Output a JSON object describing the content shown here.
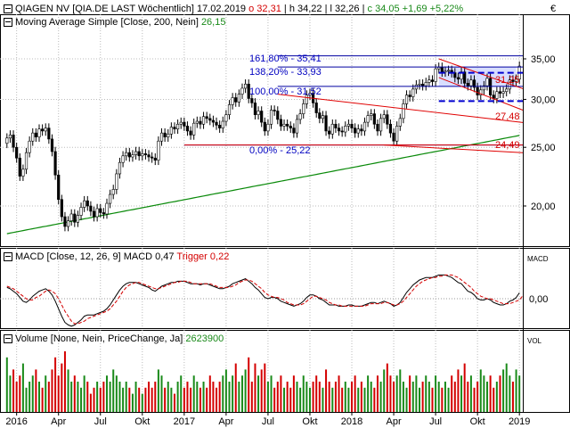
{
  "header": {
    "name": "QIAGEN NV",
    "instrument": "[QIA.DE LAST Wöchentlich]",
    "date": "17.02.2019",
    "o": "o 32,31",
    "h": "h 34,22",
    "l": "l 32,26",
    "c": "c 34,05",
    "change": "+1,69",
    "change_pct": "+5,22%",
    "corner_label": "€"
  },
  "sma_legend": {
    "label": "Moving Average Simple",
    "params": "[Close, 200, Nein]",
    "value": "26,15"
  },
  "macd_legend": {
    "label": "MACD",
    "params": "[Close, 12, 26, 9]",
    "value_label": "MACD 0,47",
    "trigger_label": "Trigger 0,22",
    "axis_label": "MACD"
  },
  "volume_legend": {
    "label": "Volume",
    "params": "[None, Nein, PriceChange, Ja]",
    "value": "2623900",
    "axis_label": "VOL"
  },
  "fib_labels": [
    "161,80% - 35,41",
    "138,20% - 33,93",
    "100,00% - 31,52",
    "0,00% - 25,22"
  ],
  "level_labels": [
    "31,25",
    "27,48",
    "24,49"
  ],
  "chart_data": [
    {
      "type": "candlestick",
      "title": "QIAGEN NV",
      "y_ticks": [
        "35,00",
        "30,00",
        "25,00",
        "20,00"
      ],
      "y_tick_values": [
        35,
        30,
        25,
        20
      ],
      "ylim": [
        16.8,
        36.4
      ],
      "y_scale": "log",
      "x_ticks": [
        "2016",
        "Apr",
        "Jul",
        "Okt",
        "2017",
        "Apr",
        "Jul",
        "Okt",
        "2018",
        "Apr",
        "Jul",
        "Okt",
        "2019"
      ],
      "x_tick_weeks": [
        3,
        16,
        29,
        42,
        55,
        68,
        81,
        94,
        107,
        120,
        133,
        146,
        159
      ],
      "closes": [
        25.9,
        26.2,
        25.0,
        24.0,
        22.4,
        23.0,
        24.5,
        25.6,
        26.4,
        26.0,
        26.8,
        26.6,
        26.9,
        25.8,
        24.6,
        22.5,
        20.5,
        19.2,
        18.5,
        18.9,
        19.4,
        18.8,
        19.3,
        19.9,
        20.4,
        20.0,
        19.6,
        19.2,
        19.8,
        19.5,
        19.4,
        20.2,
        20.9,
        21.3,
        22.6,
        23.6,
        24.2,
        24.5,
        24.1,
        24.3,
        24.6,
        24.2,
        24.4,
        24.3,
        24.1,
        24.0,
        23.8,
        25.6,
        26.4,
        26.0,
        26.3,
        27.0,
        26.8,
        27.3,
        27.5,
        27.1,
        26.6,
        26.2,
        27.4,
        27.6,
        27.3,
        28.1,
        27.9,
        27.7,
        27.5,
        27.2,
        26.9,
        27.6,
        28.3,
        29.4,
        30.2,
        29.7,
        30.6,
        31.3,
        31.8,
        30.1,
        29.6,
        28.3,
        28.7,
        27.5,
        26.6,
        27.3,
        28.8,
        28.7,
        27.8,
        27.1,
        27.3,
        27.1,
        26.9,
        26.4,
        27.8,
        28.4,
        29.5,
        30.5,
        30.7,
        29.6,
        28.5,
        27.9,
        28.2,
        26.6,
        26.3,
        27.3,
        26.9,
        26.6,
        26.5,
        27.1,
        27.3,
        26.9,
        26.4,
        26.8,
        26.6,
        27.5,
        28.2,
        28.4,
        27.3,
        26.6,
        27.9,
        28.3,
        27.3,
        26.4,
        25.6,
        27.1,
        27.9,
        29.5,
        30.5,
        30.3,
        31.2,
        31.7,
        31.8,
        31.6,
        32.0,
        32.3,
        32.1,
        33.7,
        33.9,
        33.3,
        33.4,
        33.5,
        33.2,
        32.6,
        32.4,
        33.3,
        31.9,
        31.6,
        32.3,
        31.4,
        30.5,
        31.1,
        31.6,
        32.5,
        30.5,
        30.1,
        30.9,
        30.7,
        30.9,
        31.2,
        32.3,
        32.1,
        32.4,
        34.05
      ],
      "series": [
        {
          "name": "Moving Average Simple",
          "start": 18.0,
          "end": 26.15
        }
      ],
      "channel_lines": [
        {
          "from": [
            117,
            25.22
          ],
          "to": [
            180,
            24.49
          ]
        },
        {
          "from": [
            55,
            25.22
          ],
          "to": [
            180,
            25.22
          ]
        },
        {
          "from": [
            84,
            30.6
          ],
          "to": [
            180,
            27.48
          ]
        },
        {
          "from": [
            134,
            35.0
          ],
          "to": [
            180,
            31.25
          ]
        },
        {
          "from": [
            134,
            32.6
          ],
          "to": [
            180,
            28.8
          ]
        }
      ],
      "fib_levels": [
        35.41,
        33.93,
        31.52,
        25.22
      ],
      "dashed_levels": [
        33.2,
        29.8
      ]
    },
    {
      "type": "line",
      "title": "MACD",
      "y_ticks": [
        "0,00"
      ],
      "series": [
        {
          "name": "MACD",
          "values": [
            0.9,
            0.8,
            0.6,
            0.4,
            0.1,
            -0.2,
            -0.3,
            -0.1,
            0.2,
            0.4,
            0.6,
            0.7,
            0.8,
            0.6,
            0.3,
            -0.2,
            -0.8,
            -1.4,
            -1.9,
            -2.1,
            -2.2,
            -2.1,
            -1.9,
            -1.7,
            -1.4,
            -1.3,
            -1.3,
            -1.3,
            -1.2,
            -1.1,
            -1.0,
            -0.8,
            -0.5,
            -0.1,
            0.3,
            0.7,
            1.0,
            1.2,
            1.3,
            1.3,
            1.3,
            1.2,
            1.1,
            1.0,
            0.9,
            0.7,
            0.6,
            0.8,
            1.0,
            1.1,
            1.2,
            1.3,
            1.3,
            1.4,
            1.4,
            1.4,
            1.3,
            1.2,
            1.2,
            1.2,
            1.1,
            1.2,
            1.2,
            1.1,
            1.0,
            0.9,
            0.8,
            0.8,
            0.9,
            1.0,
            1.2,
            1.3,
            1.4,
            1.5,
            1.6,
            1.4,
            1.2,
            0.9,
            0.7,
            0.4,
            0.1,
            0.0,
            0.1,
            0.1,
            0.0,
            -0.2,
            -0.3,
            -0.4,
            -0.5,
            -0.6,
            -0.5,
            -0.4,
            -0.2,
            0.1,
            0.3,
            0.3,
            0.2,
            0.0,
            -0.1,
            -0.3,
            -0.5,
            -0.5,
            -0.5,
            -0.6,
            -0.6,
            -0.6,
            -0.5,
            -0.5,
            -0.6,
            -0.6,
            -0.6,
            -0.5,
            -0.4,
            -0.3,
            -0.3,
            -0.4,
            -0.3,
            -0.2,
            -0.3,
            -0.4,
            -0.6,
            -0.5,
            -0.3,
            0.1,
            0.5,
            0.8,
            1.1,
            1.3,
            1.5,
            1.6,
            1.7,
            1.7,
            1.7,
            1.8,
            1.9,
            1.9,
            1.9,
            1.8,
            1.7,
            1.5,
            1.3,
            1.2,
            0.9,
            0.6,
            0.5,
            0.3,
            0.0,
            -0.1,
            -0.1,
            0.0,
            -0.1,
            -0.3,
            -0.4,
            -0.5,
            -0.5,
            -0.4,
            -0.2,
            -0.1,
            0.1,
            0.47
          ]
        },
        {
          "name": "Trigger",
          "values": [
            1.0,
            0.9,
            0.8,
            0.6,
            0.4,
            0.2,
            0.0,
            -0.1,
            -0.1,
            0.1,
            0.2,
            0.4,
            0.6,
            0.7,
            0.6,
            0.4,
            0.0,
            -0.5,
            -1.0,
            -1.4,
            -1.8,
            -2.0,
            -2.0,
            -1.9,
            -1.8,
            -1.6,
            -1.5,
            -1.4,
            -1.3,
            -1.2,
            -1.1,
            -1.0,
            -0.8,
            -0.5,
            -0.2,
            0.2,
            0.6,
            0.9,
            1.1,
            1.2,
            1.3,
            1.3,
            1.2,
            1.1,
            1.0,
            0.9,
            0.8,
            0.8,
            0.9,
            1.0,
            1.1,
            1.2,
            1.3,
            1.3,
            1.4,
            1.4,
            1.4,
            1.3,
            1.2,
            1.2,
            1.2,
            1.2,
            1.2,
            1.2,
            1.1,
            1.0,
            0.9,
            0.9,
            0.9,
            0.9,
            1.0,
            1.1,
            1.3,
            1.4,
            1.5,
            1.5,
            1.4,
            1.2,
            1.0,
            0.8,
            0.5,
            0.3,
            0.2,
            0.1,
            0.1,
            0.0,
            -0.1,
            -0.3,
            -0.4,
            -0.5,
            -0.5,
            -0.5,
            -0.4,
            -0.2,
            0.0,
            0.2,
            0.2,
            0.1,
            0.0,
            -0.1,
            -0.3,
            -0.4,
            -0.5,
            -0.5,
            -0.6,
            -0.6,
            -0.6,
            -0.6,
            -0.6,
            -0.6,
            -0.6,
            -0.6,
            -0.5,
            -0.4,
            -0.4,
            -0.4,
            -0.4,
            -0.3,
            -0.3,
            -0.4,
            -0.5,
            -0.5,
            -0.4,
            -0.2,
            0.1,
            0.4,
            0.7,
            1.0,
            1.2,
            1.4,
            1.5,
            1.6,
            1.7,
            1.7,
            1.8,
            1.8,
            1.9,
            1.9,
            1.9,
            1.8,
            1.7,
            1.5,
            1.3,
            1.1,
            0.9,
            0.6,
            0.4,
            0.2,
            0.1,
            0.0,
            0.0,
            -0.1,
            -0.2,
            -0.3,
            -0.4,
            -0.4,
            -0.4,
            -0.3,
            -0.2,
            -0.1,
            0.22
          ]
        }
      ]
    },
    {
      "type": "bar",
      "title": "Volume",
      "y_ticks": [],
      "values": [
        0.9,
        0.6,
        0.7,
        0.5,
        0.6,
        0.8,
        0.4,
        0.5,
        0.6,
        0.7,
        0.5,
        0.4,
        0.6,
        0.5,
        0.7,
        0.9,
        0.6,
        0.8,
        1.0,
        0.7,
        0.5,
        0.6,
        0.5,
        0.4,
        0.6,
        0.5,
        0.3,
        0.4,
        0.5,
        0.4,
        0.5,
        0.6,
        0.5,
        0.7,
        0.6,
        0.5,
        0.4,
        0.5,
        0.4,
        0.3,
        0.5,
        0.4,
        0.3,
        0.4,
        0.5,
        0.4,
        0.5,
        0.7,
        0.6,
        0.4,
        0.5,
        0.4,
        0.3,
        0.5,
        0.6,
        0.4,
        0.5,
        0.4,
        0.6,
        0.5,
        0.4,
        0.5,
        0.4,
        0.6,
        0.5,
        0.4,
        0.5,
        0.6,
        0.7,
        0.5,
        0.6,
        0.8,
        0.5,
        0.6,
        0.7,
        0.9,
        0.5,
        0.8,
        0.6,
        0.7,
        0.8,
        0.5,
        0.6,
        0.4,
        0.5,
        0.6,
        0.4,
        0.5,
        0.4,
        0.6,
        0.5,
        0.4,
        0.6,
        0.5,
        0.4,
        0.5,
        0.6,
        0.5,
        0.4,
        0.7,
        0.5,
        0.4,
        0.5,
        0.6,
        0.4,
        0.5,
        0.4,
        0.5,
        0.6,
        0.4,
        0.5,
        0.4,
        0.6,
        0.5,
        0.4,
        0.6,
        0.5,
        0.7,
        0.8,
        0.6,
        0.5,
        0.6,
        0.7,
        0.5,
        0.4,
        0.6,
        0.5,
        0.6,
        0.4,
        0.5,
        0.6,
        0.5,
        0.4,
        0.6,
        0.5,
        0.4,
        0.5,
        0.4,
        0.6,
        0.5,
        0.7,
        0.6,
        0.8,
        0.5,
        0.6,
        0.4,
        0.5,
        0.7,
        0.6,
        0.5,
        0.6,
        0.4,
        0.5,
        0.6,
        0.7,
        0.8,
        0.6,
        0.5,
        0.7,
        0.6
      ],
      "up_down": "green=up, red=down"
    }
  ],
  "colors": {
    "up": "#1a8a1a",
    "down": "#d40000",
    "sma": "#0a8a0a",
    "fib": "#0000a0",
    "channel": "#e00000",
    "dashed": "#0000d0",
    "trigger": "#d40000",
    "band": "#c8d0ff"
  }
}
